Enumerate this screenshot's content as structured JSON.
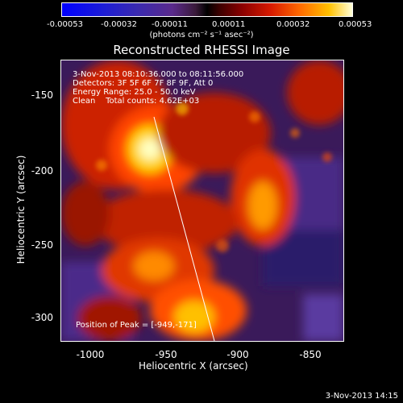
{
  "colorbar": {
    "ticks": [
      "-0.00053",
      "-0.00032",
      "-0.00011",
      "0.00011",
      "0.00032",
      "0.00053"
    ],
    "unit": "(photons cm⁻² s⁻¹ asec⁻²)"
  },
  "plot": {
    "title": "Reconstructed RHESSI Image",
    "annotations": [
      "3-Nov-2013 08:10:36.000 to 08:11:56.000",
      "Detectors: 3F 5F 6F 7F 8F 9F, Att 0",
      "Energy Range: 25.0 - 50.0 keV",
      "Clean    Total counts: 4.62E+03"
    ],
    "peak_label": "Position of Peak = [-949,-171]",
    "x_ticks": [
      "-1000",
      "-950",
      "-900",
      "-850"
    ],
    "y_ticks": [
      "-150",
      "-200",
      "-250",
      "-300"
    ],
    "x_label": "Heliocentric X (arcsec)",
    "y_label": "Heliocentric Y (arcsec)"
  },
  "timestamp": "3-Nov-2013 14:15",
  "colors": {
    "background": "#000000",
    "foreground": "#ffffff"
  }
}
